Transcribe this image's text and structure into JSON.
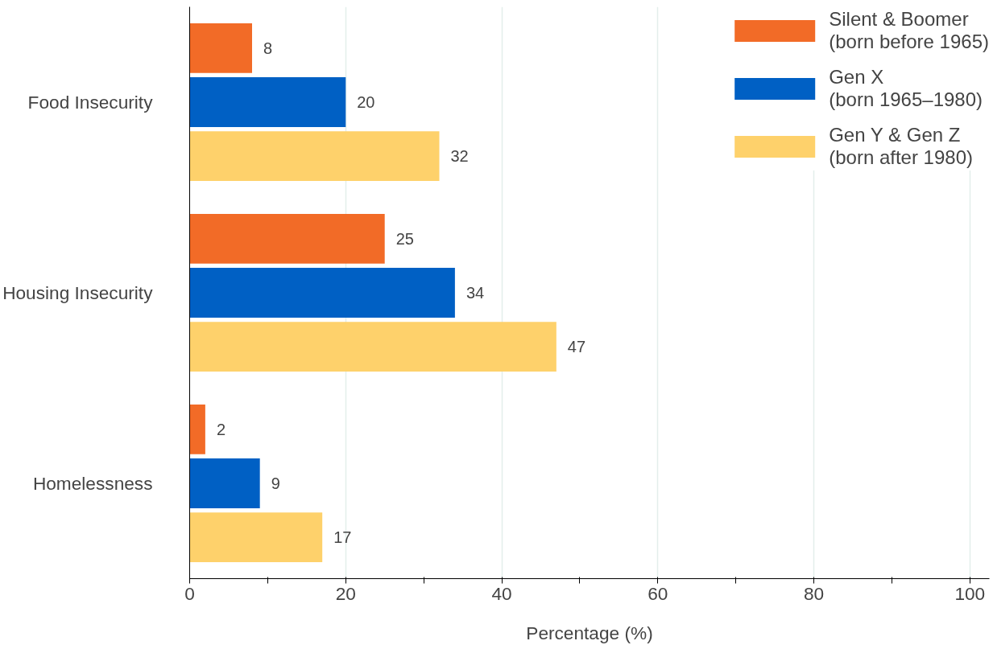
{
  "chart_data": {
    "type": "bar",
    "orientation": "horizontal",
    "xlabel": "Percentage (%)",
    "categories": [
      "Food Insecurity",
      "Housing Insecurity",
      "Homelessness"
    ],
    "series": [
      {
        "name": "Silent & Boomer\n(born before 1965)",
        "color": "#f26b27",
        "values": [
          8,
          25,
          2
        ]
      },
      {
        "name": "Gen X\n(born 1965–1980)",
        "color": "#0060c4",
        "values": [
          20,
          34,
          9
        ]
      },
      {
        "name": "Gen Y & Gen Z\n(born after 1980)",
        "color": "#fed16b",
        "values": [
          32,
          47,
          17
        ]
      }
    ],
    "xlim": [
      0,
      102.5
    ],
    "xticks": [
      0,
      {
        "value": 10,
        "label": null
      },
      20,
      {
        "value": 30,
        "label": null
      },
      40,
      {
        "value": 50,
        "label": null
      },
      60,
      {
        "value": 70,
        "label": null
      },
      80,
      {
        "value": 90,
        "label": null
      },
      100
    ],
    "grid": "x",
    "legend": "top right",
    "data_labels": true
  }
}
